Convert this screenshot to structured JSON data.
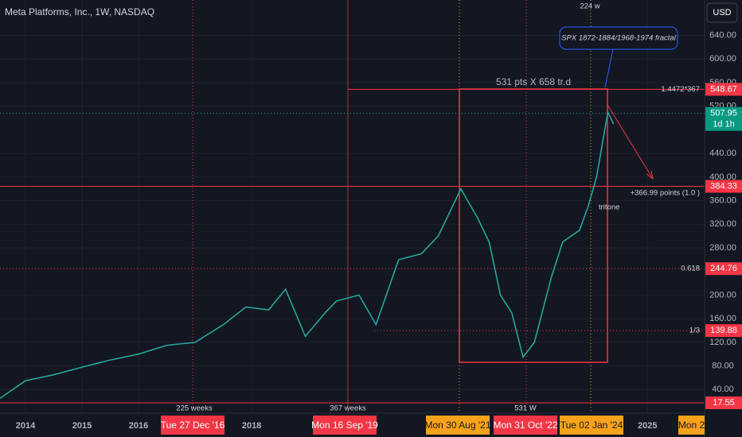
{
  "chart_data": {
    "type": "line",
    "title": "Meta Platforms, Inc., 1W, NASDAQ",
    "currency": "USD",
    "color": "#26a69a",
    "x": [
      2013.55,
      2014,
      2014.5,
      2015,
      2015.5,
      2016,
      2016.5,
      2017,
      2017.5,
      2017.9,
      2018.3,
      2018.6,
      2018.95,
      2019.3,
      2019.5,
      2019.9,
      2020.2,
      2020.6,
      2021.0,
      2021.3,
      2021.7,
      2022.0,
      2022.2,
      2022.4,
      2022.6,
      2022.8,
      2023.0,
      2023.3,
      2023.5,
      2023.8,
      2023.95,
      2024.1,
      2024.3,
      2024.4
    ],
    "values": [
      25,
      55,
      65,
      78,
      90,
      100,
      115,
      120,
      150,
      180,
      175,
      210,
      130,
      170,
      190,
      200,
      150,
      260,
      270,
      300,
      380,
      330,
      290,
      200,
      170,
      95,
      120,
      230,
      290,
      310,
      350,
      400,
      510,
      490
    ],
    "xlim": [
      2013.55,
      2026.01
    ],
    "xticks": [
      2014,
      2015,
      2016,
      2018,
      2025
    ],
    "ylim": [
      0,
      700
    ],
    "yticks": [
      {
        "value": 40,
        "label": "40.00"
      },
      {
        "value": 80,
        "label": "80.00"
      },
      {
        "value": 120,
        "label": "120.00"
      },
      {
        "value": 160,
        "label": "160.00"
      },
      {
        "value": 200,
        "label": "200.00"
      },
      {
        "value": 280,
        "label": "280.00"
      },
      {
        "value": 320,
        "label": "320.00"
      },
      {
        "value": 360,
        "label": "360.00"
      },
      {
        "value": 400,
        "label": "400.00"
      },
      {
        "value": 440,
        "label": "440.00"
      },
      {
        "value": 520,
        "label": "520.00"
      },
      {
        "value": 560,
        "label": "560.00"
      },
      {
        "value": 600,
        "label": "600.00"
      },
      {
        "value": 640,
        "label": "640.00"
      }
    ],
    "grid": true,
    "last_price": {
      "value": 507.95,
      "countdown": "1d 1h"
    },
    "levels": [
      {
        "value": 548.67,
        "note": "1.4472*367"
      },
      {
        "value": 384.33,
        "note": "+366.99 points (1.0 )"
      },
      {
        "value": 244.76,
        "note": "0.618"
      },
      {
        "value": 139.88,
        "note": "1/3"
      },
      {
        "value": 17.55
      }
    ],
    "annotations": {
      "top_weeks": "224 w",
      "fractal": "SPX 1872-1884/1968-1974  fractal",
      "box": "531 pts X 658 tr.d",
      "tritone": "tritone",
      "weeks_1": "225 weeks",
      "weeks_2": "367 weeks",
      "weeks_3": "531 W"
    },
    "date_labels": [
      "Tue 27 Dec '16",
      "Mon 16 Sep '19",
      "Mon 30 Aug '21",
      "Mon 31 Oct '22",
      "Tue 02 Jan '24",
      "Mon 2"
    ]
  }
}
